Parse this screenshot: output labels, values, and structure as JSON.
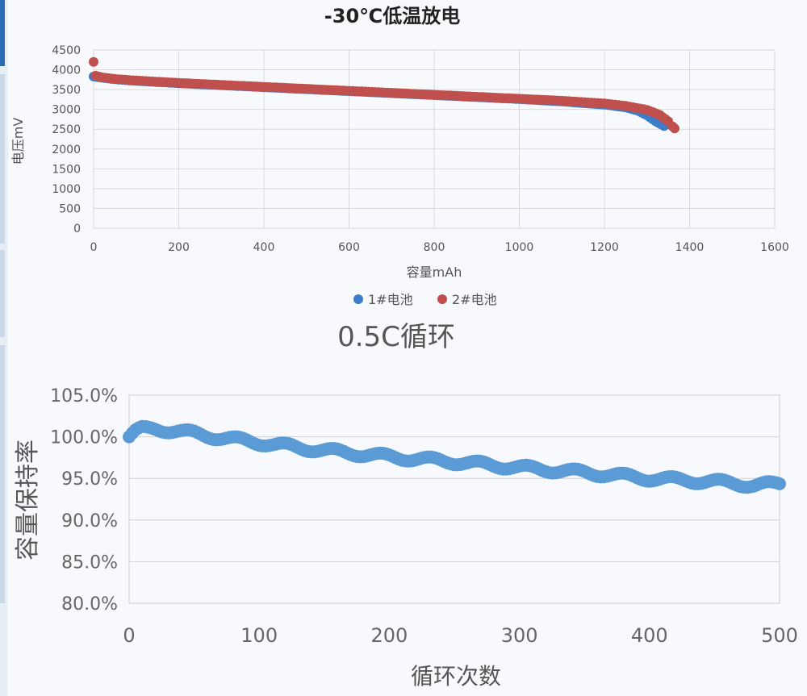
{
  "chart_data": [
    {
      "type": "scatter",
      "title": "-30℃低温放电",
      "xlabel": "容量mAh",
      "ylabel": "电压mV",
      "xlim": [
        0,
        1600
      ],
      "ylim": [
        0,
        4500
      ],
      "xticks": [
        0,
        200,
        400,
        600,
        800,
        1000,
        1200,
        1400,
        1600
      ],
      "yticks": [
        0,
        500,
        1000,
        1500,
        2000,
        2500,
        3000,
        3500,
        4000,
        4500
      ],
      "grid": true,
      "legend_position": "bottom",
      "series": [
        {
          "name": "1#电池",
          "color": "#3d7cc9",
          "points": [
            [
              0,
              3830
            ],
            [
              20,
              3800
            ],
            [
              50,
              3760
            ],
            [
              100,
              3720
            ],
            [
              200,
              3660
            ],
            [
              300,
              3610
            ],
            [
              400,
              3560
            ],
            [
              500,
              3510
            ],
            [
              600,
              3460
            ],
            [
              700,
              3410
            ],
            [
              800,
              3360
            ],
            [
              900,
              3310
            ],
            [
              1000,
              3260
            ],
            [
              1100,
              3200
            ],
            [
              1200,
              3120
            ],
            [
              1250,
              3050
            ],
            [
              1280,
              2960
            ],
            [
              1300,
              2850
            ],
            [
              1320,
              2700
            ],
            [
              1340,
              2580
            ]
          ]
        },
        {
          "name": "2#电池",
          "color": "#c0504d",
          "points": [
            [
              0,
              4200
            ],
            [
              5,
              3850
            ],
            [
              20,
              3810
            ],
            [
              50,
              3770
            ],
            [
              100,
              3730
            ],
            [
              200,
              3670
            ],
            [
              300,
              3620
            ],
            [
              400,
              3570
            ],
            [
              500,
              3520
            ],
            [
              600,
              3470
            ],
            [
              700,
              3420
            ],
            [
              800,
              3370
            ],
            [
              900,
              3320
            ],
            [
              1000,
              3270
            ],
            [
              1100,
              3220
            ],
            [
              1200,
              3150
            ],
            [
              1250,
              3090
            ],
            [
              1300,
              2990
            ],
            [
              1330,
              2860
            ],
            [
              1350,
              2700
            ],
            [
              1360,
              2570
            ],
            [
              1365,
              2520
            ]
          ]
        }
      ]
    },
    {
      "type": "scatter",
      "title": "0.5C循环",
      "xlabel": "循环次数",
      "ylabel": "容量保持率",
      "xlim": [
        0,
        500
      ],
      "ylim": [
        80,
        105
      ],
      "xticks": [
        0,
        100,
        200,
        300,
        400,
        500
      ],
      "yticks": [
        80,
        85,
        90,
        95,
        100,
        105
      ],
      "ytick_labels": [
        "80.0%",
        "85.0%",
        "90.0%",
        "95.0%",
        "100.0%",
        "105.0%"
      ],
      "grid": true,
      "series": [
        {
          "color": "#5b9bd5",
          "points": [
            [
              0,
              100.0
            ],
            [
              5,
              100.6
            ],
            [
              10,
              100.9
            ],
            [
              20,
              101.0
            ],
            [
              30,
              100.8
            ],
            [
              50,
              100.4
            ],
            [
              70,
              99.9
            ],
            [
              100,
              99.3
            ],
            [
              130,
              98.7
            ],
            [
              160,
              98.2
            ],
            [
              200,
              97.6
            ],
            [
              250,
              97.0
            ],
            [
              300,
              96.3
            ],
            [
              350,
              95.7
            ],
            [
              400,
              95.0
            ],
            [
              450,
              94.6
            ],
            [
              480,
              94.2
            ],
            [
              500,
              94.3
            ]
          ]
        }
      ]
    }
  ]
}
